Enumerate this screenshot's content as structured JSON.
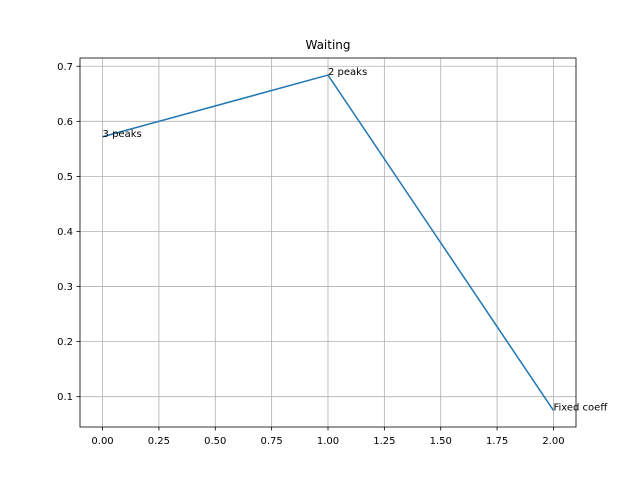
{
  "chart_data": {
    "type": "line",
    "title": "Waiting",
    "xlabel": "",
    "ylabel": "",
    "xlim": [
      -0.1,
      2.1
    ],
    "ylim": [
      0.045,
      0.715
    ],
    "x_ticks": [
      0.0,
      0.25,
      0.5,
      0.75,
      1.0,
      1.25,
      1.5,
      1.75,
      2.0
    ],
    "x_tick_labels": [
      "0.00",
      "0.25",
      "0.50",
      "0.75",
      "1.00",
      "1.25",
      "1.50",
      "1.75",
      "2.00"
    ],
    "y_ticks": [
      0.1,
      0.2,
      0.3,
      0.4,
      0.5,
      0.6,
      0.7
    ],
    "y_tick_labels": [
      "0.1",
      "0.2",
      "0.3",
      "0.4",
      "0.5",
      "0.6",
      "0.7"
    ],
    "grid": true,
    "series": [
      {
        "color": "#1f77b4",
        "x": [
          0,
          1,
          2
        ],
        "y": [
          0.572,
          0.684,
          0.075
        ]
      }
    ],
    "annotations": [
      {
        "text": "3 peaks",
        "x": 0,
        "y": 0.572
      },
      {
        "text": "2 peaks",
        "x": 1,
        "y": 0.684
      },
      {
        "text": "Fixed coeff",
        "x": 2,
        "y": 0.075
      }
    ]
  }
}
